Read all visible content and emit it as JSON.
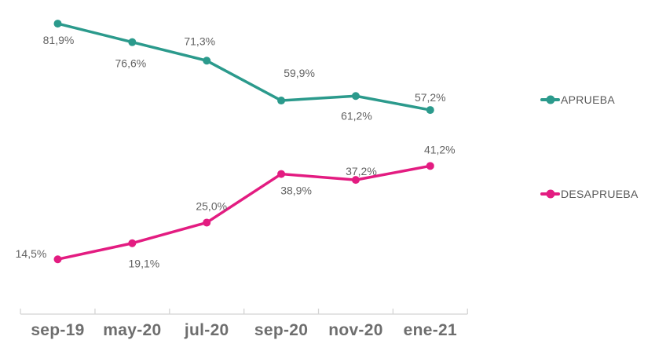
{
  "page": {
    "background": "#ffffff"
  },
  "chart_data": {
    "type": "line",
    "title": "",
    "xlabel": "",
    "ylabel": "",
    "categories": [
      "sep-19",
      "may-20",
      "jul-20",
      "sep-20",
      "nov-20",
      "ene-21"
    ],
    "series": [
      {
        "name": "APRUEBA",
        "color": "#2b9a8c",
        "values": [
          81.9,
          76.6,
          71.3,
          59.9,
          61.2,
          57.2
        ],
        "labels": [
          "81,9%",
          "76,6%",
          "71,3%",
          "59,9%",
          "61,2%",
          "57,2%"
        ],
        "label_offsets": [
          [
            1,
            21
          ],
          [
            -2,
            27
          ],
          [
            -9,
            -25
          ],
          [
            23,
            -35
          ],
          [
            1,
            25
          ],
          [
            0,
            -16
          ]
        ]
      },
      {
        "name": "DESAPRUEBA",
        "color": "#e31c81",
        "values": [
          14.5,
          19.1,
          25.0,
          38.9,
          37.2,
          41.2
        ],
        "labels": [
          "14,5%",
          "19,1%",
          "25,0%",
          "38,9%",
          "37,2%",
          "41,2%"
        ],
        "label_offsets": [
          [
            -34,
            -7
          ],
          [
            15,
            26
          ],
          [
            6,
            -21
          ],
          [
            19,
            21
          ],
          [
            7,
            -11
          ],
          [
            12,
            -21
          ]
        ]
      }
    ],
    "ylim": [
      0,
      100
    ],
    "grid": false,
    "legend_position": "right",
    "axis_color": "#d4d4d4",
    "data_label_color": "#636363",
    "tick_label_color": "#6e6e6e",
    "legend_text_color": "#595959"
  }
}
